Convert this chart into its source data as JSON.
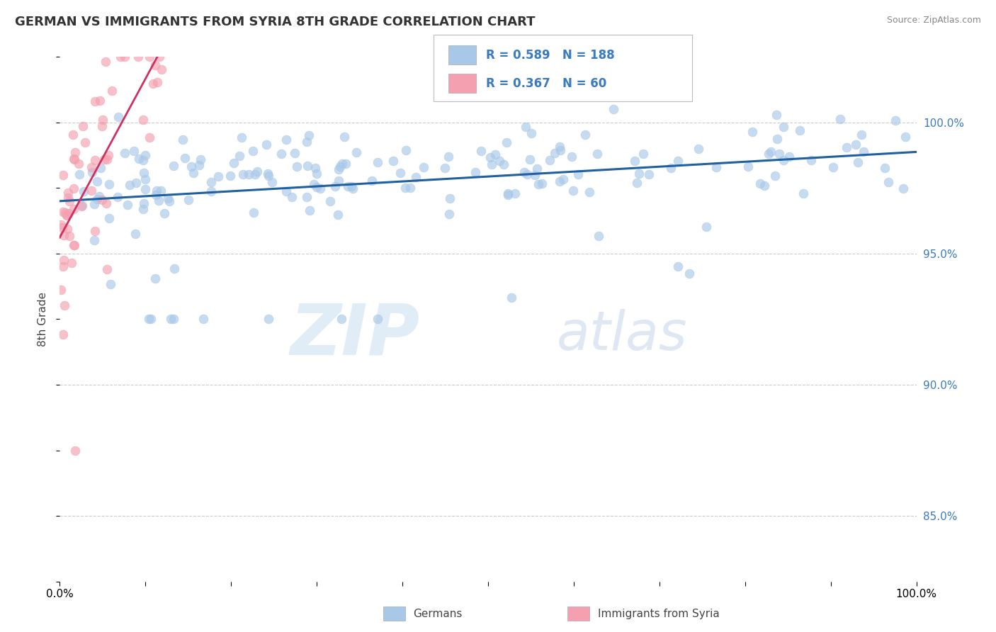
{
  "title": "GERMAN VS IMMIGRANTS FROM SYRIA 8TH GRADE CORRELATION CHART",
  "source": "Source: ZipAtlas.com",
  "ylabel": "8th Grade",
  "right_yticks": [
    0.85,
    0.9,
    0.95,
    1.0
  ],
  "right_ytick_labels": [
    "85.0%",
    "90.0%",
    "95.0%",
    "100.0%"
  ],
  "legend_r1": "R = 0.589",
  "legend_n1": "N = 188",
  "legend_r2": "R = 0.367",
  "legend_n2": "N = 60",
  "color_german": "#a8c8e8",
  "color_germany_edge": "#a8c8e8",
  "color_syria": "#f4a0b0",
  "color_syria_edge": "#f4a0b0",
  "color_trend_german": "#2060a0",
  "color_trend_syria": "#d03060",
  "color_legend_text": "#3a7abf",
  "watermark_zip": "ZIP",
  "watermark_atlas": "atlas",
  "background_color": "#ffffff",
  "title_color": "#333333",
  "title_fontsize": 13,
  "ylim_low": 0.825,
  "ylim_high": 1.025,
  "seed": 42,
  "n_german": 188,
  "n_syria": 60
}
